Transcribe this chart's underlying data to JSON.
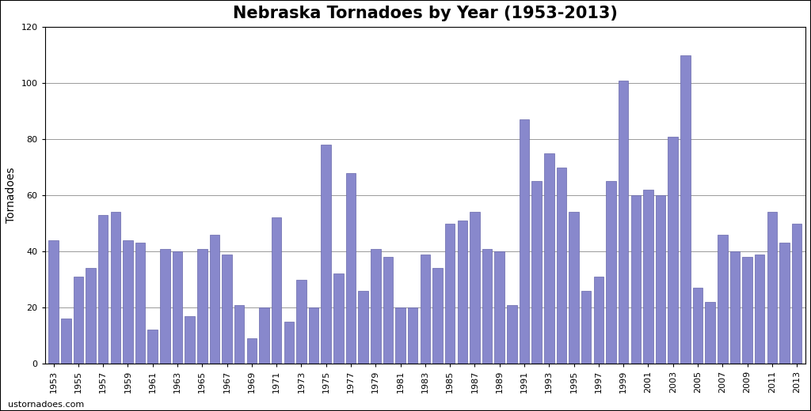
{
  "years": [
    1953,
    1954,
    1955,
    1956,
    1957,
    1958,
    1959,
    1960,
    1961,
    1962,
    1963,
    1964,
    1965,
    1966,
    1967,
    1968,
    1969,
    1970,
    1971,
    1972,
    1973,
    1974,
    1975,
    1976,
    1977,
    1978,
    1979,
    1980,
    1981,
    1982,
    1983,
    1984,
    1985,
    1986,
    1987,
    1988,
    1989,
    1990,
    1991,
    1992,
    1993,
    1994,
    1995,
    1996,
    1997,
    1998,
    1999,
    2000,
    2001,
    2002,
    2003,
    2004,
    2005,
    2006,
    2007,
    2008,
    2009,
    2010,
    2011,
    2012,
    2013
  ],
  "values": [
    44,
    16,
    31,
    34,
    53,
    54,
    44,
    43,
    12,
    41,
    40,
    17,
    41,
    46,
    39,
    21,
    9,
    20,
    52,
    15,
    30,
    20,
    78,
    32,
    68,
    26,
    41,
    38,
    20,
    20,
    39,
    34,
    50,
    51,
    54,
    41,
    40,
    21,
    87,
    65,
    75,
    70,
    54,
    26,
    31,
    65,
    101,
    60,
    62,
    60,
    81,
    110,
    27,
    22,
    46,
    40,
    38,
    39,
    54,
    43,
    50
  ],
  "bar_color": "#8888cc",
  "bar_edgecolor": "#6666aa",
  "title": "Nebraska Tornadoes by Year (1953-2013)",
  "ylabel": "Tornadoes",
  "ylim": [
    0,
    120
  ],
  "yticks": [
    0,
    20,
    40,
    60,
    80,
    100,
    120
  ],
  "xtick_years": [
    1953,
    1955,
    1957,
    1959,
    1961,
    1963,
    1965,
    1967,
    1969,
    1971,
    1973,
    1975,
    1977,
    1979,
    1981,
    1983,
    1985,
    1987,
    1989,
    1991,
    1993,
    1995,
    1997,
    1999,
    2001,
    2003,
    2005,
    2007,
    2009,
    2011,
    2013
  ],
  "background_color": "#ffffff",
  "plot_bg_color": "#ffffff",
  "grid_color": "#999999",
  "title_fontsize": 15,
  "axis_label_fontsize": 10,
  "tick_fontsize": 8,
  "watermark": "ustornadoes.com",
  "border_color": "#000000"
}
